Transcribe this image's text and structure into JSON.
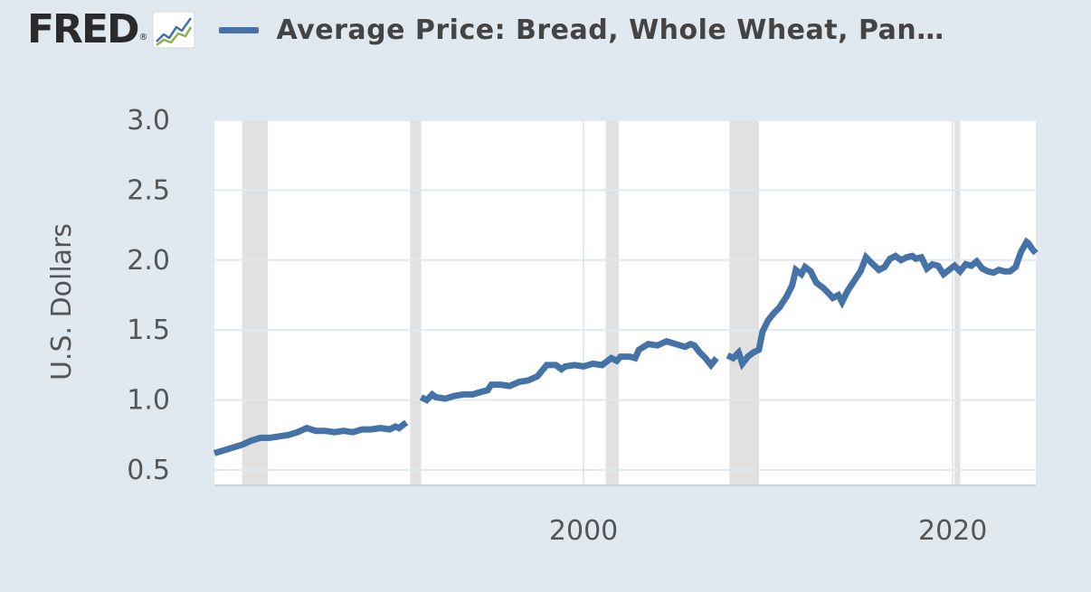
{
  "header": {
    "logo_text": "FRED",
    "logo_reg": "®",
    "graph_icon": "line-chart-icon",
    "legend_label": "Average Price: Bread, Whole Wheat, Pan…"
  },
  "colors": {
    "series": "#4572a7",
    "background": "#e1e9f0",
    "plot_bg": "#ffffff",
    "recession": "#e1e1e1",
    "grid": "#e1e9f0"
  },
  "chart_data": {
    "type": "line",
    "title": "",
    "xlabel": "",
    "ylabel": "U.S. Dollars",
    "xlim": [
      1980,
      2024.5
    ],
    "ylim": [
      0.5,
      3.0
    ],
    "x_ticks": [
      2000,
      2020
    ],
    "x_tick_labels": [
      "2000",
      "2020"
    ],
    "y_ticks": [
      0.5,
      1.0,
      1.5,
      2.0,
      2.5,
      3.0
    ],
    "y_tick_labels": [
      "0.5",
      "1.0",
      "1.5",
      "2.0",
      "2.5",
      "3.0"
    ],
    "grid": true,
    "recessions": [
      [
        1981.5,
        1982.9
      ],
      [
        1990.6,
        1991.2
      ],
      [
        2001.2,
        2001.9
      ],
      [
        2007.9,
        2009.5
      ],
      [
        2020.1,
        2020.4
      ]
    ],
    "series": [
      {
        "name": "Average Price: Bread, Whole Wheat, Pan…",
        "segments": [
          [
            [
              1980.0,
              0.62
            ],
            [
              1980.5,
              0.64
            ],
            [
              1981.0,
              0.66
            ],
            [
              1981.5,
              0.68
            ],
            [
              1982.0,
              0.71
            ],
            [
              1982.5,
              0.73
            ],
            [
              1983.0,
              0.73
            ],
            [
              1983.5,
              0.74
            ],
            [
              1984.0,
              0.75
            ],
            [
              1984.5,
              0.77
            ],
            [
              1985.0,
              0.8
            ],
            [
              1985.5,
              0.78
            ],
            [
              1986.0,
              0.78
            ],
            [
              1986.5,
              0.77
            ],
            [
              1987.0,
              0.78
            ],
            [
              1987.5,
              0.77
            ],
            [
              1988.0,
              0.79
            ],
            [
              1988.5,
              0.79
            ],
            [
              1989.0,
              0.8
            ],
            [
              1989.5,
              0.79
            ],
            [
              1989.8,
              0.81
            ],
            [
              1990.0,
              0.8
            ],
            [
              1990.4,
              0.84
            ]
          ],
          [
            [
              1991.2,
              1.02
            ],
            [
              1991.5,
              1.0
            ],
            [
              1991.8,
              1.04
            ],
            [
              1992.0,
              1.02
            ],
            [
              1992.5,
              1.01
            ],
            [
              1993.0,
              1.03
            ],
            [
              1993.5,
              1.04
            ],
            [
              1994.0,
              1.04
            ],
            [
              1994.5,
              1.06
            ],
            [
              1994.8,
              1.07
            ],
            [
              1995.0,
              1.11
            ],
            [
              1995.5,
              1.11
            ],
            [
              1996.0,
              1.1
            ],
            [
              1996.5,
              1.13
            ],
            [
              1997.0,
              1.14
            ],
            [
              1997.5,
              1.17
            ],
            [
              1998.0,
              1.25
            ],
            [
              1998.5,
              1.25
            ],
            [
              1998.8,
              1.22
            ],
            [
              1999.0,
              1.24
            ],
            [
              1999.5,
              1.25
            ],
            [
              2000.0,
              1.24
            ],
            [
              2000.5,
              1.26
            ],
            [
              2001.0,
              1.25
            ],
            [
              2001.5,
              1.3
            ],
            [
              2001.8,
              1.28
            ],
            [
              2002.0,
              1.31
            ],
            [
              2002.5,
              1.31
            ],
            [
              2002.8,
              1.3
            ],
            [
              2003.0,
              1.36
            ],
            [
              2003.5,
              1.4
            ],
            [
              2004.0,
              1.39
            ],
            [
              2004.5,
              1.42
            ],
            [
              2005.0,
              1.4
            ],
            [
              2005.5,
              1.38
            ],
            [
              2005.8,
              1.4
            ],
            [
              2006.0,
              1.39
            ],
            [
              2006.3,
              1.34
            ],
            [
              2006.6,
              1.3
            ],
            [
              2006.9,
              1.25
            ],
            [
              2007.2,
              1.3
            ]
          ],
          [
            [
              2007.8,
              1.32
            ],
            [
              2008.1,
              1.3
            ],
            [
              2008.4,
              1.34
            ],
            [
              2008.6,
              1.26
            ],
            [
              2008.9,
              1.31
            ],
            [
              2009.2,
              1.34
            ],
            [
              2009.5,
              1.36
            ],
            [
              2009.7,
              1.49
            ],
            [
              2010.0,
              1.57
            ],
            [
              2010.3,
              1.62
            ],
            [
              2010.6,
              1.66
            ],
            [
              2011.0,
              1.74
            ],
            [
              2011.3,
              1.82
            ],
            [
              2011.5,
              1.93
            ],
            [
              2011.8,
              1.9
            ],
            [
              2012.0,
              1.95
            ],
            [
              2012.3,
              1.92
            ],
            [
              2012.6,
              1.84
            ],
            [
              2013.0,
              1.8
            ],
            [
              2013.3,
              1.76
            ],
            [
              2013.5,
              1.73
            ],
            [
              2013.8,
              1.75
            ],
            [
              2014.0,
              1.7
            ],
            [
              2014.3,
              1.78
            ],
            [
              2014.6,
              1.84
            ],
            [
              2015.0,
              1.92
            ],
            [
              2015.3,
              2.02
            ],
            [
              2015.6,
              1.98
            ],
            [
              2016.0,
              1.93
            ],
            [
              2016.3,
              1.95
            ],
            [
              2016.6,
              2.01
            ],
            [
              2016.9,
              2.03
            ],
            [
              2017.2,
              2.0
            ],
            [
              2017.5,
              2.02
            ],
            [
              2017.8,
              2.03
            ],
            [
              2018.0,
              2.01
            ],
            [
              2018.3,
              2.02
            ],
            [
              2018.6,
              1.94
            ],
            [
              2018.9,
              1.97
            ],
            [
              2019.2,
              1.96
            ],
            [
              2019.5,
              1.9
            ],
            [
              2019.8,
              1.93
            ],
            [
              2020.1,
              1.96
            ],
            [
              2020.4,
              1.92
            ],
            [
              2020.7,
              1.97
            ],
            [
              2021.0,
              1.96
            ],
            [
              2021.3,
              1.99
            ],
            [
              2021.6,
              1.94
            ],
            [
              2021.9,
              1.92
            ],
            [
              2022.2,
              1.91
            ],
            [
              2022.5,
              1.93
            ],
            [
              2022.8,
              1.92
            ],
            [
              2023.1,
              1.92
            ],
            [
              2023.4,
              1.95
            ],
            [
              2023.7,
              2.06
            ],
            [
              2024.0,
              2.13
            ],
            [
              2024.1,
              2.12
            ],
            [
              2024.3,
              2.08
            ],
            [
              2024.5,
              2.05
            ]
          ]
        ]
      }
    ]
  }
}
